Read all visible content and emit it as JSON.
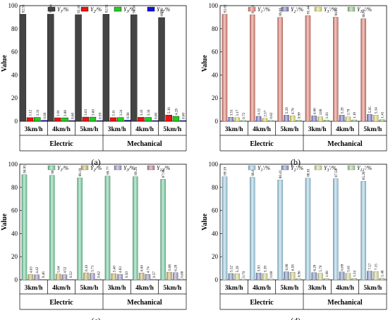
{
  "figure": {
    "panels": [
      {
        "panel_label": "(a)",
        "ylabel": "Value",
        "group_labels": [
          "Electric",
          "Mechanical"
        ],
        "legend": [
          "Y₁/%",
          "Y₂/%",
          "Y₃/%",
          "Y₁₂/%"
        ],
        "colors": [
          "#444444",
          "#ee1111",
          "#22cc22",
          "#1111dd"
        ],
        "style": "solid"
      },
      {
        "panel_label": "(b)",
        "ylabel": "Value",
        "group_labels": [
          "Electric",
          "Mechanical"
        ],
        "legend": [
          "Y₁'/%",
          "Y₂'/%",
          "Y₃'/%",
          "Y₁₂'/%"
        ],
        "colors": [
          "#e8887a",
          "#8080c8",
          "#e6e07a",
          "#9ad08e"
        ],
        "style": "gradient"
      },
      {
        "panel_label": "(c)",
        "ylabel": "Value",
        "group_labels": [
          "Electric",
          "Mechanical"
        ],
        "legend": [
          "Y₁/%",
          "Y₂/%",
          "Y₃/%",
          "Y₁₂/%"
        ],
        "colors": [
          "#7cd6a8",
          "#d0c07a",
          "#a8a0cc",
          "#c88aa8"
        ],
        "style": "gradient"
      },
      {
        "panel_label": "(d)",
        "ylabel": "Value",
        "group_labels": [
          "Electric",
          "Mechanical"
        ],
        "legend": [
          "Y₁'/%",
          "Y₂'/%",
          "Y₃'/%",
          "Y₁₂'/%"
        ],
        "colors": [
          "#a8d8ee",
          "#8ea0cc",
          "#dde0a0",
          "#b8d8a0"
        ],
        "style": "gradient"
      }
    ]
  },
  "chart_data": [
    {
      "type": "bar",
      "categories": [
        "3km/h",
        "4km/h",
        "5km/h",
        "3km/h",
        "4km/h",
        "5km/h"
      ],
      "ylim": [
        0,
        100
      ],
      "yticks": [
        0,
        20,
        40,
        60,
        80,
        100
      ],
      "series": [
        {
          "name": "Y₁/%",
          "values": [
            92.55,
            92.66,
            92.16,
            92.55,
            92.16,
            89.68
          ],
          "labels": [
            "92.55",
            "92.66",
            "92.16",
            "92.55",
            "92.16",
            "89.68"
          ]
        },
        {
          "name": "Y₂/%",
          "values": [
            3.12,
            3.01,
            3.63,
            3.11,
            3.41,
            5.36
          ],
          "labels": [
            "3.12",
            "3.01",
            "3.63",
            "3.11",
            "3.41",
            "5.36"
          ]
        },
        {
          "name": "Y₃/%",
          "values": [
            3.31,
            2.98,
            3.6,
            3.24,
            3.34,
            4.28
          ],
          "labels": [
            "3.31",
            "2.98",
            "3.60",
            "3.24",
            "3.34",
            "4.28"
          ]
        },
        {
          "name": "Y₁₂/%",
          "values": [
            0.8,
            0.6,
            0.59,
            0.9,
            0.6,
            0.6
          ],
          "labels": [
            "0.80",
            "0.60",
            "0.59",
            "0.90",
            "0.60",
            "0.60"
          ]
        }
      ]
    },
    {
      "type": "bar",
      "categories": [
        "3km/h",
        "4km/h",
        "5km/h",
        "3km/h",
        "4km/h",
        "5km/h"
      ],
      "ylim": [
        0,
        100
      ],
      "yticks": [
        0,
        20,
        40,
        60,
        80,
        100
      ],
      "series": [
        {
          "name": "Y₁'/%",
          "values": [
            92.62,
            92.11,
            89.86,
            91.44,
            90.03,
            88.71
          ],
          "labels": [
            "92.62",
            "92.11",
            "89.86",
            "91.44",
            "90.03",
            "88.71"
          ]
        },
        {
          "name": "Y₂'/%",
          "values": [
            3.51,
            4.32,
            5.29,
            4.68,
            5.28,
            5.95
          ],
          "labels": [
            "3.51",
            "4.32",
            "5.29",
            "4.68",
            "5.28",
            "5.95"
          ]
        },
        {
          "name": "Y₃'/%",
          "values": [
            3.17,
            2.57,
            4.76,
            3.88,
            3.79,
            5.34
          ],
          "labels": [
            "3.17",
            "2.57",
            "4.76",
            "3.88",
            "3.79",
            "5.34"
          ]
        },
        {
          "name": "Y₁₂'/%",
          "values": [
            0.72,
            0.82,
            0.99,
            1.03,
            1.18,
            1.41
          ],
          "labels": [
            "0.72",
            "0.82",
            "0.99",
            "1.03",
            "1.18",
            "1.41"
          ]
        }
      ]
    },
    {
      "type": "bar",
      "categories": [
        "3km/h",
        "4km/h",
        "5km/h",
        "3km/h",
        "4km/h",
        "5km/h"
      ],
      "ylim": [
        0,
        100
      ],
      "yticks": [
        0,
        20,
        40,
        60,
        80,
        100
      ],
      "series": [
        {
          "name": "Y₁/%",
          "values": [
            90.95,
            90.44,
            88.19,
            89.77,
            89.26,
            87.04
          ],
          "labels": [
            "90.95",
            "90.44",
            "88.19",
            "89.77",
            "89.26",
            "87.04"
          ]
        },
        {
          "name": "Y₂/%",
          "values": [
            4.63,
            5.04,
            6.1,
            5.4,
            6.0,
            6.68
          ],
          "labels": [
            "4.63",
            "5.04",
            "6.10",
            "5.40",
            "6.00",
            "6.68"
          ]
        },
        {
          "name": "Y₃/%",
          "values": [
            4.42,
            4.52,
            5.71,
            4.83,
            4.74,
            6.28
          ],
          "labels": [
            "4.42",
            "4.52",
            "5.71",
            "4.83",
            "4.74",
            "6.28"
          ]
        },
        {
          "name": "Y₁₂/%",
          "values": [
            0.46,
            0.52,
            0.62,
            0.5,
            0.57,
            0.68
          ],
          "labels": [
            "0.46",
            "0.52",
            "0.62",
            "0.50",
            "0.57",
            "0.68"
          ]
        }
      ]
    },
    {
      "type": "bar",
      "categories": [
        "3km/h",
        "4km/h",
        "5km/h",
        "3km/h",
        "4km/h",
        "5km/h"
      ],
      "ylim": [
        0,
        100
      ],
      "yticks": [
        0,
        20,
        40,
        60,
        80,
        100
      ],
      "series": [
        {
          "name": "Y₁'/%",
          "values": [
            89.19,
            88.68,
            86.43,
            88.01,
            87.5,
            85.28
          ],
          "labels": [
            "89.19",
            "88.68",
            "86.43",
            "88.01",
            "87.50",
            "85.28"
          ]
        },
        {
          "name": "Y₂'/%",
          "values": [
            5.52,
            5.93,
            6.99,
            6.29,
            6.89,
            7.57
          ],
          "labels": [
            "5.52",
            "5.93",
            "6.99",
            "6.29",
            "6.89",
            "7.57"
          ]
        },
        {
          "name": "Y₃'/%",
          "values": [
            5.29,
            5.39,
            6.58,
            5.7,
            5.61,
            7.15
          ],
          "labels": [
            "5.29",
            "5.39",
            "6.58",
            "5.70",
            "5.61",
            "7.15"
          ]
        },
        {
          "name": "Y₁₂'/%",
          "values": [
            0.7,
            0.8,
            0.96,
            1.08,
            1.24,
            1.48
          ],
          "labels": [
            "0.70",
            "0.80",
            "0.96",
            "1.08",
            "1.24",
            "1.48"
          ]
        }
      ]
    }
  ]
}
